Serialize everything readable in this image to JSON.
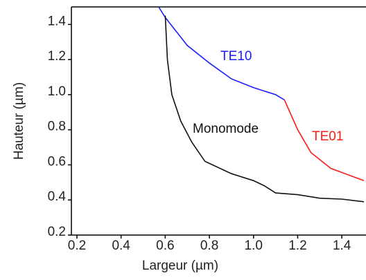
{
  "chart_data": {
    "type": "line",
    "xlabel": "Largeur (µm)",
    "ylabel": "Hauteur (µm)",
    "xlim": [
      0.175,
      1.5
    ],
    "ylim": [
      0.2,
      1.5
    ],
    "xticks": [
      0.2,
      0.4,
      0.6,
      0.8,
      {
        "value": 1,
        "label": "1.0"
      },
      1.2,
      1.4
    ],
    "yticks": [
      0.2,
      0.4,
      0.6,
      0.8,
      {
        "value": 1,
        "label": "1.0"
      },
      1.2,
      1.4
    ],
    "series": [
      {
        "name": "TE10",
        "color": "#1a1aff",
        "x": [
          0.57,
          0.6,
          0.7,
          0.8,
          0.9,
          1.0,
          1.1,
          1.14
        ],
        "values": [
          1.5,
          1.44,
          1.28,
          1.18,
          1.09,
          1.04,
          1.0,
          0.97
        ]
      },
      {
        "name": "TE01",
        "color": "#ff1a1a",
        "x": [
          1.14,
          1.2,
          1.26,
          1.35,
          1.5
        ],
        "values": [
          0.97,
          0.8,
          0.67,
          0.58,
          0.51
        ]
      },
      {
        "name": "Monomode",
        "color": "#111111",
        "x": [
          0.6,
          0.61,
          0.63,
          0.67,
          0.72,
          0.78,
          0.9,
          1.0,
          1.05,
          1.1,
          1.2,
          1.3,
          1.4,
          1.5
        ],
        "values": [
          1.45,
          1.2,
          1.0,
          0.85,
          0.73,
          0.62,
          0.55,
          0.51,
          0.48,
          0.44,
          0.43,
          0.41,
          0.405,
          0.39
        ]
      }
    ]
  }
}
